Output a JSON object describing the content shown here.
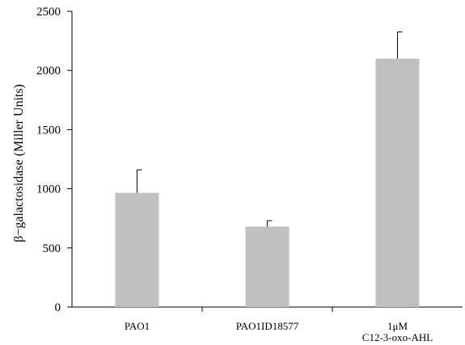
{
  "chart_data": {
    "type": "bar",
    "categories": [
      [
        "PAO1"
      ],
      [
        "PAO1ID18577"
      ],
      [
        "1μM",
        "C12-3-oxo-AHL"
      ]
    ],
    "values": [
      965,
      680,
      2100
    ],
    "errors": [
      195,
      50,
      225
    ],
    "ylabel": "β−galactosidase (Miller Units)",
    "xlabel": "",
    "title": "",
    "ylim": [
      0,
      2500
    ],
    "yticks": [
      0,
      500,
      1000,
      1500,
      2000,
      2500
    ],
    "grid": false,
    "legend": "none",
    "colors": {
      "bar": "#c0c0c0",
      "axis": "#000000",
      "error_bar": "#000000"
    }
  }
}
